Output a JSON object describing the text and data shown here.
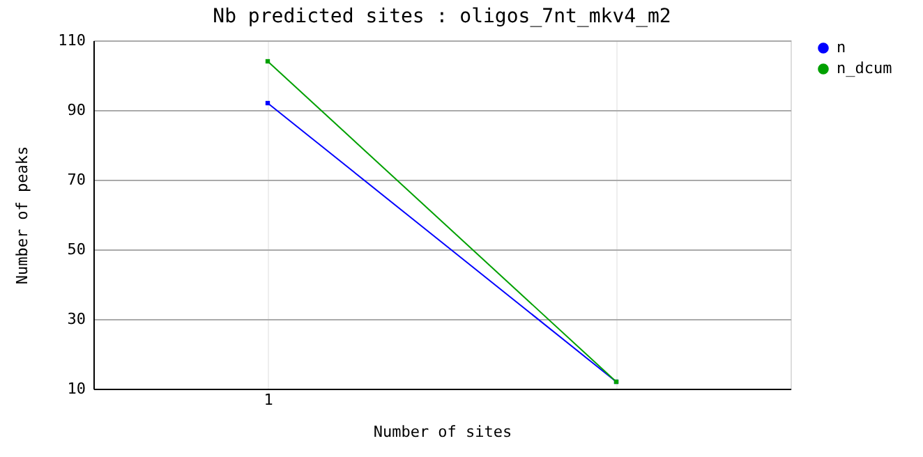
{
  "chart_data": {
    "type": "line",
    "title": "Nb predicted sites : oligos_7nt_mkv4_m2",
    "xlabel": "Number of sites",
    "ylabel": "Number of peaks",
    "categories": [
      "1",
      null
    ],
    "series": [
      {
        "name": "n",
        "color": "#0000ff",
        "values": [
          92,
          12
        ]
      },
      {
        "name": "n_dcum",
        "color": "#00a000",
        "values": [
          104,
          12
        ]
      }
    ],
    "ylim": [
      10,
      110
    ],
    "yticks": [
      10,
      30,
      50,
      70,
      90,
      110
    ],
    "grid": true,
    "legend": "top right",
    "marker": "square",
    "line_style": "solid"
  }
}
